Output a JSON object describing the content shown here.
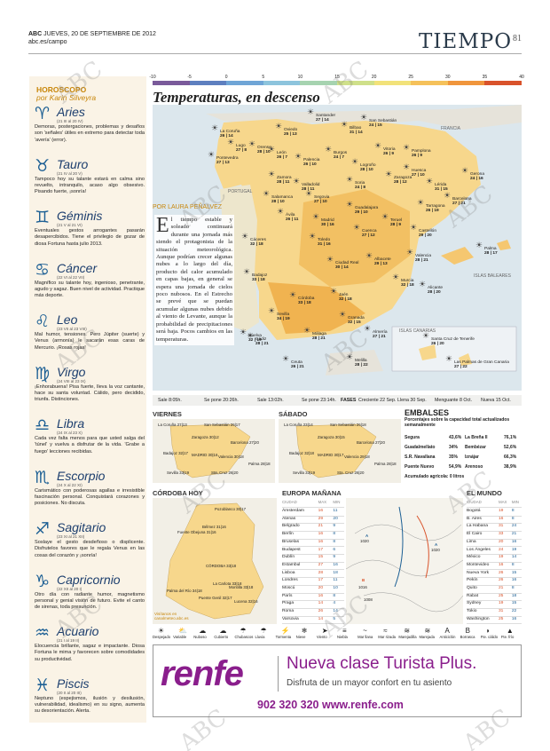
{
  "header": {
    "paper": "ABC",
    "date": "JUEVES, 20 DE SEPTIEMBRE DE 2012",
    "edition": "abc.es/campo",
    "section": "TIEMPO",
    "page": "81"
  },
  "horoscope": {
    "heading": "HOROSCOPO",
    "author": "por Karin Silveyra",
    "signs": [
      {
        "name": "Aries",
        "glyph": "♈",
        "dates": "(21 III al 20 IV)",
        "text": "Demoras, postergaciones, problemas y desafíos son 'señales' útiles en extremo para detectar toda 'avería' (error)."
      },
      {
        "name": "Tauro",
        "glyph": "♉",
        "dates": "(21 IV al 20 V)",
        "text": "Tampoco hoy su talante estará en calma sino revuelto, intranquilo, acaso algo obsesivo. Pisando fuerte, ¡sonría!"
      },
      {
        "name": "Géminis",
        "glyph": "♊",
        "dates": "(21 V al 21 VI)",
        "text": "Eventuales gestos arrogantes pasarán desapercibidos. Tiene el privilegio de gozar de diosa Fortuna hasta julio 2013."
      },
      {
        "name": "Cáncer",
        "glyph": "♋",
        "dates": "(22 VI al 22 VII)",
        "text": "Magnífico su talante hoy, ingenioso, penetrante, agudo y sagaz. Buen nivel de actividad. Practique más deporte."
      },
      {
        "name": "Leo",
        "glyph": "♌",
        "dates": "(23 VII al 23 VIII)",
        "text": "Mal humor, tensiones. Pero Júpiter (suerte) y Venus (armonía) le sacarán esas caras de Mercurio. ¡Rosas rojas!"
      },
      {
        "name": "Virgo",
        "glyph": "♍",
        "dates": "(24 VIII al 23 IX)",
        "text": "¡Enhorabuena! Pisa fuerte, lleva la voz cantante, hace su santa voluntad. Cálido, pero decidido, triunfa. Distinciones."
      },
      {
        "name": "Libra",
        "glyph": "♎",
        "dates": "(24 IX al 23 X)",
        "text": "Cada vez falta menos para que usted salga del 'túnel' y vuelva a disfrutar de la vida. 'Grabe a fuego' lecciones recibidas."
      },
      {
        "name": "Escorpio",
        "glyph": "♏",
        "dates": "(24 X al 22 XI)",
        "text": "Carismático con poderosas agallas e irresistible fascinación personal. Conquistará corazones y posiciones. No discuta."
      },
      {
        "name": "Sagitario",
        "glyph": "♐",
        "dates": "(23 XI al 21 XII)",
        "text": "Soslaye el gesto desdeñoso o displicente. Disfrutelos favores que le regala Venus en las cosas del corazón y ¡sonría!"
      },
      {
        "name": "Capricornio",
        "glyph": "♑",
        "dates": "(22 XII al 20 I)",
        "text": "Otro día con radiante humor, magnetismo personal y genial visión de futuro. Evite el canto de sirenas, toda presunción."
      },
      {
        "name": "Acuario",
        "glyph": "♒",
        "dates": "(21 I al 19 II)",
        "text": "Elocuencia brillante, sagaz e impactante. Diosa Fortuna le mima y favorecen sobre comodidades su productividad."
      },
      {
        "name": "Piscis",
        "glyph": "♓",
        "dates": "(20 II al 20 III)",
        "text": "Neptuno (espejismos, ilusión y desilusión, vulnerabilidad, idealismo) en su signo, aumenta su desorientación. Alerta."
      }
    ]
  },
  "scale": {
    "labels": [
      "-10",
      "-5",
      "0",
      "5",
      "10",
      "15",
      "20",
      "25",
      "30",
      "35",
      "40"
    ],
    "colors": [
      "#7a5a9a",
      "#5e7fbf",
      "#6fa5d6",
      "#8dc4dd",
      "#a6d3b0",
      "#cfe08a",
      "#f2e27a",
      "#f5c15a",
      "#f0953c",
      "#d9532b"
    ]
  },
  "map": {
    "title": "Temperaturas, en descenso",
    "byline": "POR LAURA PEÑALVEZ",
    "intro_drop": "E",
    "intro": "l tiempo estable y soleado continuará durante una jornada más siendo el protagonista de la situación meteorológica. Aunque podrían crecer algunas nubes a lo largo del día, producto del calor acumulado en capas bajas, en general se espera una jornada de cielos poco nubosos. En el Estrecho se prevé que se puedan acumular algunas nubes debido al viento de Levante, aunque la probabilidad de precipitaciones será baja. Pocos cambios en las temperaturas.",
    "labels": [
      "FRANCIA",
      "PORTUGAL",
      "ISLAS BALEARES",
      "ISLAS CANARIAS"
    ],
    "cities": [
      {
        "n": "La Coruña",
        "t": "26 | 14"
      },
      {
        "n": "Lugo",
        "t": "27 | 8"
      },
      {
        "n": "Oviedo",
        "t": "25 | 13"
      },
      {
        "n": "Santander",
        "t": "27 | 14"
      },
      {
        "n": "Bilbao",
        "t": "31 | 14"
      },
      {
        "n": "San Sebastián",
        "t": "24 | 15"
      },
      {
        "n": "Pamplona",
        "t": "26 | 9"
      },
      {
        "n": "Vitoria",
        "t": "26 | 9"
      },
      {
        "n": "Pontevedra",
        "t": "27 | 13"
      },
      {
        "n": "Orense",
        "t": "28 | 10"
      },
      {
        "n": "León",
        "t": "26 | 7"
      },
      {
        "n": "Palencia",
        "t": "26 | 10"
      },
      {
        "n": "Burgos",
        "t": "24 | 7"
      },
      {
        "n": "Logroño",
        "t": "28 | 10"
      },
      {
        "n": "Huesca",
        "t": "27 | 10"
      },
      {
        "n": "Lérida",
        "t": "31 | 15"
      },
      {
        "n": "Gerona",
        "t": "24 | 16"
      },
      {
        "n": "Barcelona",
        "t": "27 | 21"
      },
      {
        "n": "Tarragona",
        "t": "26 | 19"
      },
      {
        "n": "Zaragoza",
        "t": "28 | 12"
      },
      {
        "n": "Zamora",
        "t": "28 | 11"
      },
      {
        "n": "Valladolid",
        "t": "28 | 11"
      },
      {
        "n": "Soria",
        "t": "24 | 8"
      },
      {
        "n": "Salamanca",
        "t": "28 | 10"
      },
      {
        "n": "Segovia",
        "t": "27 | 10"
      },
      {
        "n": "Ávila",
        "t": "26 | 11"
      },
      {
        "n": "Guadalajara",
        "t": "29 | 10"
      },
      {
        "n": "Teruel",
        "t": "28 | 9"
      },
      {
        "n": "Castellón",
        "t": "29 | 20"
      },
      {
        "n": "Madrid",
        "t": "30 | 16"
      },
      {
        "n": "Cuenca",
        "t": "27 | 12"
      },
      {
        "n": "Valencia",
        "t": "28 | 21"
      },
      {
        "n": "Cáceres",
        "t": "32 | 18"
      },
      {
        "n": "Toledo",
        "t": "31 | 16"
      },
      {
        "n": "Albacete",
        "t": "29 | 13"
      },
      {
        "n": "Palma",
        "t": "28 | 17"
      },
      {
        "n": "Badajoz",
        "t": "33 | 18"
      },
      {
        "n": "Ciudad Real",
        "t": "30 | 14"
      },
      {
        "n": "Alicante",
        "t": "28 | 20"
      },
      {
        "n": "Murcia",
        "t": "32 | 18"
      },
      {
        "n": "Córdoba",
        "t": "33 | 18"
      },
      {
        "n": "Jaén",
        "t": "32 | 18"
      },
      {
        "n": "Sevilla",
        "t": "34 | 19"
      },
      {
        "n": "Granada",
        "t": "32 | 15"
      },
      {
        "n": "Almería",
        "t": "27 | 21"
      },
      {
        "n": "Huelva",
        "t": "32 | 19"
      },
      {
        "n": "Cádiz",
        "t": "28 | 21"
      },
      {
        "n": "Málaga",
        "t": "28 | 21"
      },
      {
        "n": "Ceuta",
        "t": "26 | 21"
      },
      {
        "n": "Melilla",
        "t": "28 | 22"
      },
      {
        "n": "Santa Cruz de Tenerife",
        "t": "26 | 20"
      },
      {
        "n": "Las Palmas de Gran Canaria",
        "t": "27 | 22"
      }
    ]
  },
  "sunbar": {
    "sol_sale": "Sale 8:05h.",
    "sol_pone": "Se pone 20:26h.",
    "luna_sale": "Sale 13:02h.",
    "luna_pone": "Se pone 23:14h.",
    "fases_label": "FASES",
    "fases": [
      "Creciente 22 Sep.",
      "Llena 30 Sep.",
      "Menguante 8 Oct.",
      "Nueva 15 Oct."
    ]
  },
  "viernes": {
    "title": "VIERNES",
    "cities": [
      "La Coruña 27|13",
      "San Sebastián 26|17",
      "Zaragoza 30|12",
      "Barcelona 27|20",
      "Badajoz 32|17",
      "MADRID 30|16",
      "Valencia 30|18",
      "Sevilla 33|19",
      "Sta. Cruz 26|20",
      "Palma 28|18"
    ]
  },
  "sabado": {
    "title": "SÁBADO",
    "cities": [
      "La Coruña 23|14",
      "San Sebastián 26|18",
      "Zaragoza 30|15",
      "Barcelona 27|20",
      "Badajoz 32|18",
      "MADRID 30|17",
      "Valencia 29|18",
      "Sevilla 33|19",
      "Sta. Cruz 26|20",
      "Palma 28|18"
    ]
  },
  "embalses": {
    "title": "EMBALSES",
    "subtitle": "Porcentajes sobre la capacidad total actualizados semanalmente",
    "rows": [
      [
        "Segura",
        "43,6%",
        "La Breña II",
        "76,1%"
      ],
      [
        "Guadalmellato",
        "34%",
        "Bembézar",
        "52,6%"
      ],
      [
        "S.R. Navallana",
        "35%",
        "Iznájar",
        "66,3%"
      ],
      [
        "Puente Nuevo",
        "54,9%",
        "Arenoso",
        "38,9%"
      ]
    ],
    "total": "Acumulado agrícola: 0 litros"
  },
  "cordoba": {
    "title": "CÓRDOBA HOY",
    "cities": [
      "Pozoblanco 30|17",
      "Bélmez 31|16",
      "Fuente Obejuna 31|16",
      "CÓRDOBA 33|18",
      "La Carlota 33|18",
      "Palma del Río 34|18",
      "Puente Genil 32|17",
      "Montilla 33|18",
      "Lucena 32|16"
    ],
    "footer": "Visítanos en canalmeteo.abc.es"
  },
  "europa": {
    "title": "EUROPA MAÑANA",
    "cols": [
      "CIUDAD",
      "MAX",
      "MIN"
    ],
    "rows": [
      [
        "Ámsterdam",
        "16",
        "11"
      ],
      [
        "Atenas",
        "29",
        "20"
      ],
      [
        "Belgrado",
        "21",
        "9"
      ],
      [
        "Berlín",
        "16",
        "8"
      ],
      [
        "Bruselas",
        "16",
        "8"
      ],
      [
        "Budapest",
        "17",
        "6"
      ],
      [
        "Dublín",
        "15",
        "9"
      ],
      [
        "Estambul",
        "27",
        "16"
      ],
      [
        "Lisboa",
        "28",
        "18"
      ],
      [
        "Londres",
        "17",
        "11"
      ],
      [
        "Moscú",
        "20",
        "10"
      ],
      [
        "París",
        "16",
        "8"
      ],
      [
        "Praga",
        "14",
        "4"
      ],
      [
        "Roma",
        "26",
        "14"
      ],
      [
        "Varsovia",
        "14",
        "5"
      ]
    ],
    "map_labels": [
      "A",
      "1020",
      "B",
      "1016",
      "1008",
      "A",
      "1020"
    ]
  },
  "mundo": {
    "title": "EL MUNDO",
    "cols": [
      "CIUDAD",
      "MAX",
      "MIN"
    ],
    "rows": [
      [
        "Bogotá",
        "19",
        "8"
      ],
      [
        "B. Aires",
        "16",
        "8"
      ],
      [
        "La Habana",
        "31",
        "24"
      ],
      [
        "El Cairo",
        "33",
        "21"
      ],
      [
        "Lima",
        "20",
        "16"
      ],
      [
        "Los Ángeles",
        "24",
        "19"
      ],
      [
        "México",
        "19",
        "14"
      ],
      [
        "Montevideo",
        "16",
        "8"
      ],
      [
        "Nueva York",
        "26",
        "15"
      ],
      [
        "Pekín",
        "26",
        "16"
      ],
      [
        "Quito",
        "21",
        "8"
      ],
      [
        "Rabat",
        "25",
        "18"
      ],
      [
        "Sydney",
        "19",
        "15"
      ],
      [
        "Tokio",
        "31",
        "22"
      ],
      [
        "Washington",
        "25",
        "16"
      ]
    ]
  },
  "legend": {
    "items": [
      "Despejado",
      "Variable",
      "Nuboso",
      "Cubierto",
      "Chubascos",
      "Lluvia",
      "Tormenta",
      "Nieve",
      "Viento",
      "Niebla",
      "Mar llana",
      "Mar rizada",
      "Marejadilla",
      "Marejada",
      "Anticiclón",
      "Borrasca",
      "Fte. cálido",
      "Fte. frío"
    ]
  },
  "ad": {
    "brand": "renfe",
    "line1": "Nueva clase Turista Plus.",
    "line2": "Disfruta de un mayor confort en tu asiento",
    "line3": "902 320 320 www.renfe.com"
  },
  "watermark": "ABC"
}
